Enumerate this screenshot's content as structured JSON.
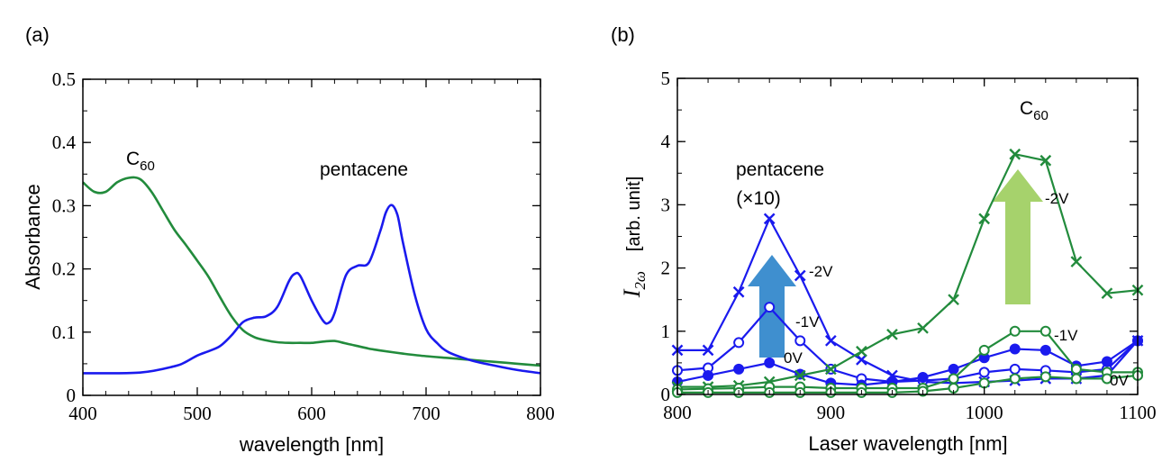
{
  "panels": {
    "a_label": "(a)",
    "b_label": "(b)"
  },
  "chart_data": [
    {
      "type": "line",
      "panel": "(a)",
      "xlabel": "wavelength [nm]",
      "ylabel": "Absorbance",
      "xlim": [
        400,
        800
      ],
      "ylim": [
        0,
        0.5
      ],
      "x_ticks": [
        "400",
        "500",
        "600",
        "700",
        "800"
      ],
      "y_ticks": [
        "0",
        "0.1",
        "0.2",
        "0.3",
        "0.4",
        "0.5"
      ],
      "grid": false,
      "annotations": {
        "c60_base": "C",
        "c60_sub": "60",
        "pentacene": "pentacene"
      },
      "colors": {
        "c60": "#228b3c",
        "pentacene": "#1a1aee"
      },
      "series": [
        {
          "key": "c60",
          "x": [
            400,
            410,
            420,
            430,
            440,
            450,
            460,
            470,
            480,
            490,
            500,
            510,
            520,
            530,
            540,
            550,
            560,
            570,
            580,
            590,
            600,
            610,
            620,
            630,
            640,
            650,
            660,
            680,
            700,
            720,
            740,
            760,
            780,
            800
          ],
          "y": [
            0.337,
            0.322,
            0.322,
            0.337,
            0.344,
            0.342,
            0.322,
            0.292,
            0.262,
            0.238,
            0.213,
            0.187,
            0.155,
            0.125,
            0.103,
            0.092,
            0.087,
            0.084,
            0.083,
            0.083,
            0.083,
            0.085,
            0.086,
            0.082,
            0.078,
            0.074,
            0.071,
            0.066,
            0.062,
            0.059,
            0.056,
            0.053,
            0.05,
            0.047
          ]
        },
        {
          "key": "pentacene",
          "x": [
            400,
            450,
            480,
            490,
            500,
            510,
            520,
            530,
            540,
            550,
            560,
            570,
            580,
            585,
            590,
            600,
            610,
            615,
            620,
            630,
            640,
            650,
            660,
            665,
            670,
            675,
            680,
            690,
            700,
            710,
            720,
            740,
            760,
            780,
            800
          ],
          "y": [
            0.035,
            0.036,
            0.046,
            0.053,
            0.063,
            0.07,
            0.078,
            0.095,
            0.116,
            0.123,
            0.125,
            0.14,
            0.18,
            0.192,
            0.189,
            0.15,
            0.118,
            0.115,
            0.13,
            0.19,
            0.205,
            0.21,
            0.26,
            0.29,
            0.301,
            0.285,
            0.24,
            0.16,
            0.105,
            0.082,
            0.068,
            0.055,
            0.047,
            0.04,
            0.035
          ]
        }
      ]
    },
    {
      "type": "line",
      "panel": "(b)",
      "xlabel": "Laser wavelength [nm]",
      "ylabel_sym": "I",
      "ylabel_sub": "2ω",
      "ylabel_unit": "[arb. unit]",
      "xlim": [
        800,
        1100
      ],
      "ylim": [
        0,
        5
      ],
      "x_ticks": [
        "800",
        "900",
        "1000",
        "1100"
      ],
      "y_ticks": [
        "0",
        "1",
        "2",
        "3",
        "4",
        "5"
      ],
      "grid": false,
      "annotations": {
        "pentacene": "pentacene",
        "pentacene_scale": "(×10)",
        "c60_base": "C",
        "c60_sub": "60"
      },
      "colors": {
        "c60": "#228b3c",
        "pentacene": "#1a1aee",
        "arrow_blue": "#3f8fcf",
        "arrow_green": "#a6d26c"
      },
      "x": [
        800,
        820,
        840,
        860,
        880,
        900,
        920,
        940,
        960,
        980,
        1000,
        1020,
        1040,
        1060,
        1080,
        1100
      ],
      "series": [
        {
          "key": "pentacene",
          "voltage": "-2V",
          "marker": "x",
          "y": [
            0.7,
            0.7,
            1.62,
            2.78,
            1.88,
            0.85,
            0.55,
            0.3,
            0.2,
            0.18,
            0.2,
            0.22,
            0.25,
            0.25,
            0.3,
            0.85
          ]
        },
        {
          "key": "pentacene",
          "voltage": "-1V",
          "marker": "open",
          "y": [
            0.38,
            0.42,
            0.82,
            1.38,
            0.85,
            0.4,
            0.25,
            0.2,
            0.22,
            0.25,
            0.35,
            0.4,
            0.38,
            0.35,
            0.4,
            0.85
          ]
        },
        {
          "key": "pentacene",
          "voltage": "0V",
          "marker": "filled",
          "y": [
            0.2,
            0.3,
            0.4,
            0.5,
            0.32,
            0.18,
            0.15,
            0.2,
            0.27,
            0.4,
            0.58,
            0.72,
            0.7,
            0.45,
            0.52,
            0.85
          ]
        },
        {
          "key": "c60",
          "voltage": "-2V",
          "marker": "x",
          "y": [
            0.12,
            0.12,
            0.14,
            0.2,
            0.3,
            0.4,
            0.68,
            0.95,
            1.05,
            1.5,
            2.78,
            3.8,
            3.7,
            2.1,
            1.6,
            1.65
          ]
        },
        {
          "key": "c60",
          "voltage": "-1V",
          "marker": "open",
          "y": [
            0.08,
            0.09,
            0.1,
            0.12,
            0.12,
            0.1,
            0.1,
            0.1,
            0.1,
            0.25,
            0.7,
            1.0,
            1.0,
            0.4,
            0.35,
            0.35
          ]
        },
        {
          "key": "c60",
          "voltage": "0V",
          "marker": "open",
          "y": [
            0.03,
            0.03,
            0.03,
            0.03,
            0.03,
            0.03,
            0.03,
            0.03,
            0.05,
            0.1,
            0.18,
            0.25,
            0.28,
            0.25,
            0.25,
            0.3
          ]
        }
      ],
      "voltage_labels": {
        "pent_m2": "-2V",
        "pent_m1": "-1V",
        "pent_0": "0V",
        "c60_m2": "-2V",
        "c60_m1": "-1V",
        "c60_0": "0V"
      }
    }
  ]
}
